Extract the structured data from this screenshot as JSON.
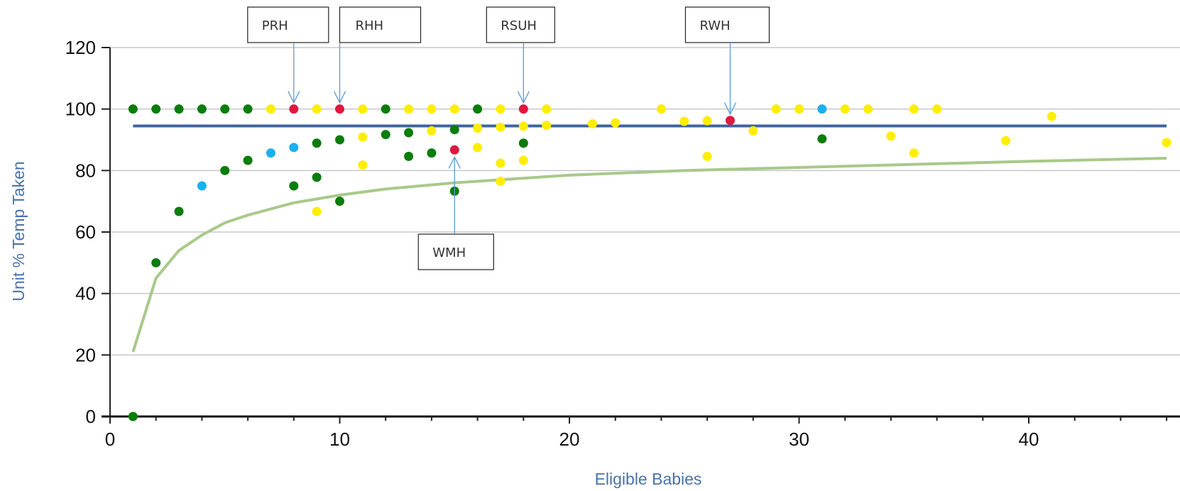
{
  "chart_data": {
    "type": "scatter",
    "xlabel": "Eligible Babies",
    "ylabel": "Unit % Temp Taken",
    "xlim": [
      0,
      46
    ],
    "ylim": [
      0,
      120
    ],
    "xticks": [
      0,
      10,
      20,
      30,
      40
    ],
    "yticks": [
      0,
      20,
      40,
      60,
      80,
      100,
      120
    ],
    "grid": "horizontal",
    "colors": {
      "axis_title": "#4a72a8",
      "gridline": "#c8c8c8",
      "mean_line": "#3e64a0",
      "lower_limit_line": "#a8c98a",
      "callout_arrow": "#5b9bd5",
      "green": "#0a7d0a",
      "yellow": "#ffee00",
      "cyan": "#1ab0ec",
      "red": "#e0173f"
    },
    "mean_line": {
      "y": 94.5,
      "x_range": [
        1,
        46
      ]
    },
    "lower_limit_curve": [
      [
        1,
        21
      ],
      [
        2,
        45
      ],
      [
        3,
        54
      ],
      [
        4,
        59
      ],
      [
        5,
        63
      ],
      [
        6,
        65.5
      ],
      [
        7,
        67.5
      ],
      [
        8,
        69.5
      ],
      [
        10,
        72
      ],
      [
        12,
        74
      ],
      [
        15,
        76
      ],
      [
        18,
        77.5
      ],
      [
        20,
        78.5
      ],
      [
        25,
        80
      ],
      [
        30,
        81
      ],
      [
        35,
        82
      ],
      [
        40,
        83
      ],
      [
        46,
        84
      ]
    ],
    "series": [
      {
        "color_key": "green",
        "points": [
          [
            1,
            100
          ],
          [
            2,
            100
          ],
          [
            3,
            100
          ],
          [
            4,
            100
          ],
          [
            5,
            100
          ],
          [
            6,
            100
          ],
          [
            12,
            100
          ],
          [
            16,
            100
          ],
          [
            1,
            0
          ],
          [
            2,
            50
          ],
          [
            3,
            66.7
          ],
          [
            5,
            80
          ],
          [
            6,
            83.3
          ],
          [
            8,
            75
          ],
          [
            9,
            77.8
          ],
          [
            9,
            88.9
          ],
          [
            10,
            70
          ],
          [
            10,
            90
          ],
          [
            12,
            91.7
          ],
          [
            13,
            84.6
          ],
          [
            13,
            92.3
          ],
          [
            14,
            85.7
          ],
          [
            15,
            73.3
          ],
          [
            15,
            93.3
          ],
          [
            18,
            88.9
          ],
          [
            31,
            90.3
          ]
        ]
      },
      {
        "color_key": "yellow",
        "points": [
          [
            7,
            100
          ],
          [
            9,
            100
          ],
          [
            11,
            100
          ],
          [
            13,
            100
          ],
          [
            14,
            100
          ],
          [
            15,
            100
          ],
          [
            17,
            100
          ],
          [
            19,
            100
          ],
          [
            24,
            100
          ],
          [
            29,
            100
          ],
          [
            30,
            100
          ],
          [
            32,
            100
          ],
          [
            33,
            100
          ],
          [
            35,
            100
          ],
          [
            36,
            100
          ],
          [
            9,
            66.7
          ],
          [
            11,
            81.8
          ],
          [
            11,
            90.9
          ],
          [
            14,
            92.9
          ],
          [
            16,
            87.5
          ],
          [
            16,
            93.8
          ],
          [
            17,
            82.4
          ],
          [
            17,
            76.5
          ],
          [
            17,
            94.1
          ],
          [
            18,
            83.3
          ],
          [
            18,
            94.4
          ],
          [
            19,
            94.7
          ],
          [
            21,
            95.2
          ],
          [
            22,
            95.5
          ],
          [
            25,
            96
          ],
          [
            26,
            96.2
          ],
          [
            26,
            84.6
          ],
          [
            28,
            92.9
          ],
          [
            34,
            91.2
          ],
          [
            35,
            85.7
          ],
          [
            39,
            89.7
          ],
          [
            41,
            97.6
          ],
          [
            46,
            89.1
          ]
        ]
      },
      {
        "color_key": "cyan",
        "points": [
          [
            4,
            75
          ],
          [
            7,
            85.7
          ],
          [
            8,
            87.5
          ],
          [
            31,
            100
          ]
        ]
      },
      {
        "color_key": "red",
        "points": [
          [
            8,
            100
          ],
          [
            10,
            100
          ],
          [
            15,
            86.7
          ],
          [
            18,
            100
          ],
          [
            27,
            96.3
          ]
        ]
      }
    ],
    "annotations": [
      {
        "text": "PRH",
        "point": [
          8,
          100
        ],
        "box_side": "above"
      },
      {
        "text": "RHH",
        "point": [
          10,
          100
        ],
        "box_side": "above"
      },
      {
        "text": "RSUH",
        "point": [
          18,
          100
        ],
        "box_side": "above"
      },
      {
        "text": "RWH",
        "point": [
          27,
          96.3
        ],
        "box_side": "above"
      },
      {
        "text": "WMH",
        "point": [
          15,
          86.7
        ],
        "box_side": "below"
      }
    ]
  }
}
